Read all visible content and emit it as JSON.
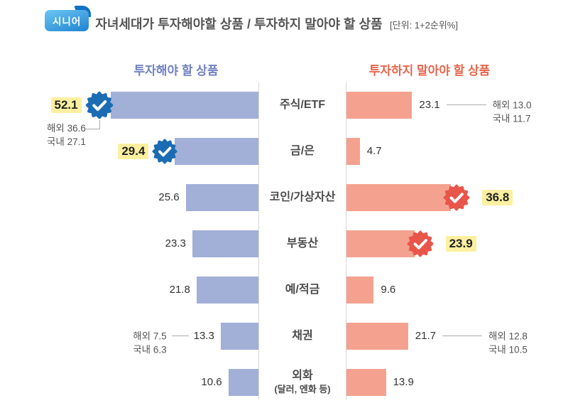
{
  "header": {
    "badge": "시니어",
    "title": "자녀세대가 투자해야할 상품 / 투자하지 말아야 할 상품",
    "unit": "[단위: 1+2순위%]"
  },
  "columns": {
    "left_title": "투자해야 할 상품",
    "right_title": "투자하지 말아야 할 상품"
  },
  "colors": {
    "left_bar": "#a2afd7",
    "right_bar": "#f4a28f",
    "left_badge": "#1b6cb3",
    "right_badge": "#e8564a",
    "highlight": "#fcf0a0",
    "left_header": "#7282c1",
    "right_header": "#e7664d"
  },
  "chart_data": {
    "type": "bar",
    "variant": "diverging-horizontal",
    "title": "자녀세대가 투자해야할 상품 / 투자하지 말아야 할 상품",
    "unit": "1+2순위%",
    "categories": [
      "주식/ETF",
      "금/은",
      "코인/가상자산",
      "부동산",
      "예/적금",
      "채권",
      "외화(달러, 엔화 등)"
    ],
    "series": [
      {
        "name": "투자해야 할 상품",
        "color": "#a2afd7",
        "values": [
          52.1,
          29.4,
          25.6,
          23.3,
          21.8,
          13.3,
          10.6
        ],
        "highlighted_values": [
          52.1,
          29.4
        ],
        "breakdown": {
          "주식/ETF": {
            "해외": 36.6,
            "국내": 27.1
          },
          "채권": {
            "해외": 7.5,
            "국내": 6.3
          }
        }
      },
      {
        "name": "투자하지 말아야 할 상품",
        "color": "#f4a28f",
        "values": [
          23.1,
          4.7,
          36.8,
          23.9,
          9.6,
          21.7,
          13.9
        ],
        "highlighted_values": [
          36.8,
          23.9
        ],
        "breakdown": {
          "주식/ETF": {
            "해외": 13.0,
            "국내": 11.7
          },
          "채권": {
            "해외": 12.8,
            "국내": 10.5
          }
        }
      }
    ],
    "xlim": [
      0,
      60
    ],
    "grid": false,
    "legend_position": "column-headers"
  },
  "rows": [
    {
      "category": "주식/ETF",
      "left": {
        "value": "52.1",
        "num": 52.1,
        "note1": "해외 36.6",
        "note2": "국내 27.1"
      },
      "right": {
        "value": "23.1",
        "num": 23.1,
        "note1": "해외 13.0",
        "note2": "국내 11.7"
      }
    },
    {
      "category": "금/은",
      "left": {
        "value": "29.4",
        "num": 29.4
      },
      "right": {
        "value": "4.7",
        "num": 4.7
      }
    },
    {
      "category": "코인/가상자산",
      "left": {
        "value": "25.6",
        "num": 25.6
      },
      "right": {
        "value": "36.8",
        "num": 36.8
      }
    },
    {
      "category": "부동산",
      "left": {
        "value": "23.3",
        "num": 23.3
      },
      "right": {
        "value": "23.9",
        "num": 23.9
      }
    },
    {
      "category": "예/적금",
      "left": {
        "value": "21.8",
        "num": 21.8
      },
      "right": {
        "value": "9.6",
        "num": 9.6
      }
    },
    {
      "category": "채권",
      "left": {
        "value": "13.3",
        "num": 13.3,
        "note1": "해외 7.5",
        "note2": "국내 6.3"
      },
      "right": {
        "value": "21.7",
        "num": 21.7,
        "note1": "해외 12.8",
        "note2": "국내 10.5"
      }
    },
    {
      "category": "외화",
      "category_sub": "(달러, 엔화 등)",
      "left": {
        "value": "10.6",
        "num": 10.6
      },
      "right": {
        "value": "13.9",
        "num": 13.9
      }
    }
  ]
}
